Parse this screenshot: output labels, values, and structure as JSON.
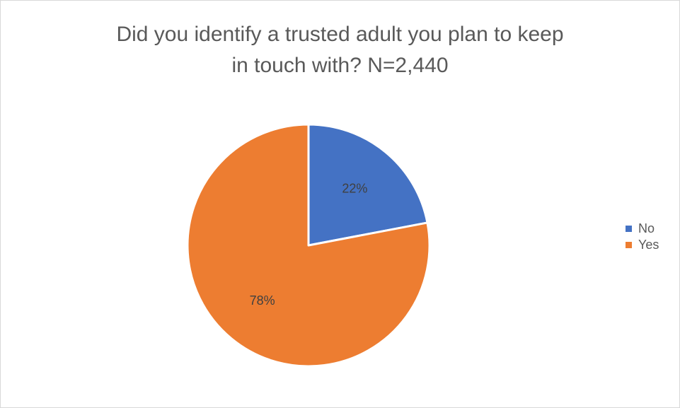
{
  "chart_data": {
    "type": "pie",
    "title_lines": [
      "Did you identify a trusted adult you plan to keep",
      "in touch with? N=2,440"
    ],
    "categories": [
      "No",
      "Yes"
    ],
    "values": [
      22,
      78
    ],
    "data_labels": [
      "22%",
      "78%"
    ],
    "colors": [
      "#4472C4",
      "#ED7D31"
    ],
    "legend_position": "right",
    "start_angle_deg": 0,
    "direction": "clockwise"
  }
}
